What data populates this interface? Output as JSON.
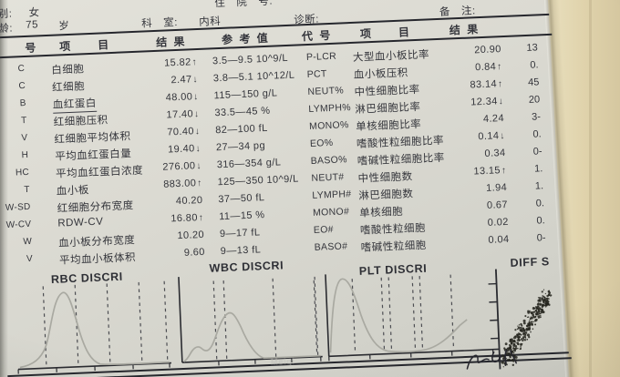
{
  "patient": {
    "gender_label": "别:",
    "gender": "女",
    "admission_label": "住　院　号:",
    "age_label": "龄:",
    "age": "75",
    "age_unit": "岁",
    "dept_label": "科　室:",
    "dept": "内科",
    "diagnosis_label": "诊断:",
    "note_label": "备　注:"
  },
  "table": {
    "headers": {
      "no": "号",
      "item_left": "项　　目",
      "result_left": "结 果",
      "ref": "参 考 值",
      "code": "代 号",
      "item_right": "项　　目",
      "result_right": "结 果"
    },
    "left_rows": [
      {
        "code": "C",
        "name": "白细胞",
        "result": "15.82",
        "flag": "↑",
        "ref": "3.5—9.5 10^9/L"
      },
      {
        "code": "C",
        "name": "红细胞",
        "result": "2.47",
        "flag": "↓",
        "ref": "3.8—5.1 10^12/L"
      },
      {
        "code": "B",
        "name": "血红蛋白",
        "result": "48.00",
        "flag": "↓",
        "ref": "115—150 g/L",
        "underline": true
      },
      {
        "code": "T",
        "name": "红细胞压积",
        "result": "17.40",
        "flag": "↓",
        "ref": "33.5—45 %"
      },
      {
        "code": "V",
        "name": "红细胞平均体积",
        "result": "70.40",
        "flag": "↓",
        "ref": "82—100 fL"
      },
      {
        "code": "H",
        "name": "平均血红蛋白量",
        "result": "19.40",
        "flag": "↓",
        "ref": "27—34 pg"
      },
      {
        "code": "HC",
        "name": "平均血红蛋白浓度",
        "result": "276.00",
        "flag": "↓",
        "ref": "316—354 g/L"
      },
      {
        "code": "T",
        "name": "血小板",
        "result": "883.00",
        "flag": "↑",
        "ref": "125—350 10^9/L"
      },
      {
        "code": "W-SD",
        "name": "红细胞分布宽度",
        "result": "40.20",
        "flag": "",
        "ref": "37—50 fL"
      },
      {
        "code": "W-CV",
        "name": "RDW-CV",
        "result": "16.80",
        "flag": "↑",
        "ref": "11—15 %"
      },
      {
        "code": "W",
        "name": "血小板分布宽度",
        "result": "10.20",
        "flag": "",
        "ref": "9—17 fL"
      },
      {
        "code": "V",
        "name": "平均血小板体积",
        "result": "9.60",
        "flag": "",
        "ref": "9—13 fL"
      }
    ],
    "right_rows": [
      {
        "code": "P-LCR",
        "name": "大型血小板比率",
        "result": "20.90",
        "flag": "",
        "ref": "13"
      },
      {
        "code": "PCT",
        "name": "血小板压积",
        "result": "0.84",
        "flag": "↑",
        "ref": "0."
      },
      {
        "code": "NEUT%",
        "name": "中性细胞比率",
        "result": "83.14",
        "flag": "↑",
        "ref": "45"
      },
      {
        "code": "LYMPH%",
        "name": "淋巴细胞比率",
        "result": "12.34",
        "flag": "↓",
        "ref": "20"
      },
      {
        "code": "MONO%",
        "name": "单核细胞比率",
        "result": "4.24",
        "flag": "",
        "ref": "3-"
      },
      {
        "code": "EO%",
        "name": "嗜酸性粒细胞比率",
        "result": "0.14",
        "flag": "↓",
        "ref": "0."
      },
      {
        "code": "BASO%",
        "name": "嗜碱性粒细胞比率",
        "result": "0.34",
        "flag": "",
        "ref": "0-"
      },
      {
        "code": "NEUT#",
        "name": "中性细胞数",
        "result": "13.15",
        "flag": "↑",
        "ref": "1."
      },
      {
        "code": "LYMPH#",
        "name": "淋巴细胞数",
        "result": "1.94",
        "flag": "",
        "ref": "1."
      },
      {
        "code": "MONO#",
        "name": "单核细胞",
        "result": "0.67",
        "flag": "",
        "ref": "0."
      },
      {
        "code": "EO#",
        "name": "嗜酸性粒细胞",
        "result": "0.02",
        "flag": "",
        "ref": "0."
      },
      {
        "code": "BASO#",
        "name": "嗜碱性粒细胞",
        "result": "0.04",
        "flag": "",
        "ref": "0-"
      }
    ]
  },
  "charts": {
    "rbc_label": "RBC DISCRI",
    "wbc_label": "WBC DISCRI",
    "plt_label": "PLT DISCRI",
    "diff_label": "DIFF S"
  },
  "watermark": "Meiqi",
  "colors": {
    "ink": "#34353b",
    "paper": "#d9d8d0",
    "table_surface_tan": "#e7dfc0",
    "histogram_curve": "#a9a9a1",
    "scatter": "#26261f"
  }
}
